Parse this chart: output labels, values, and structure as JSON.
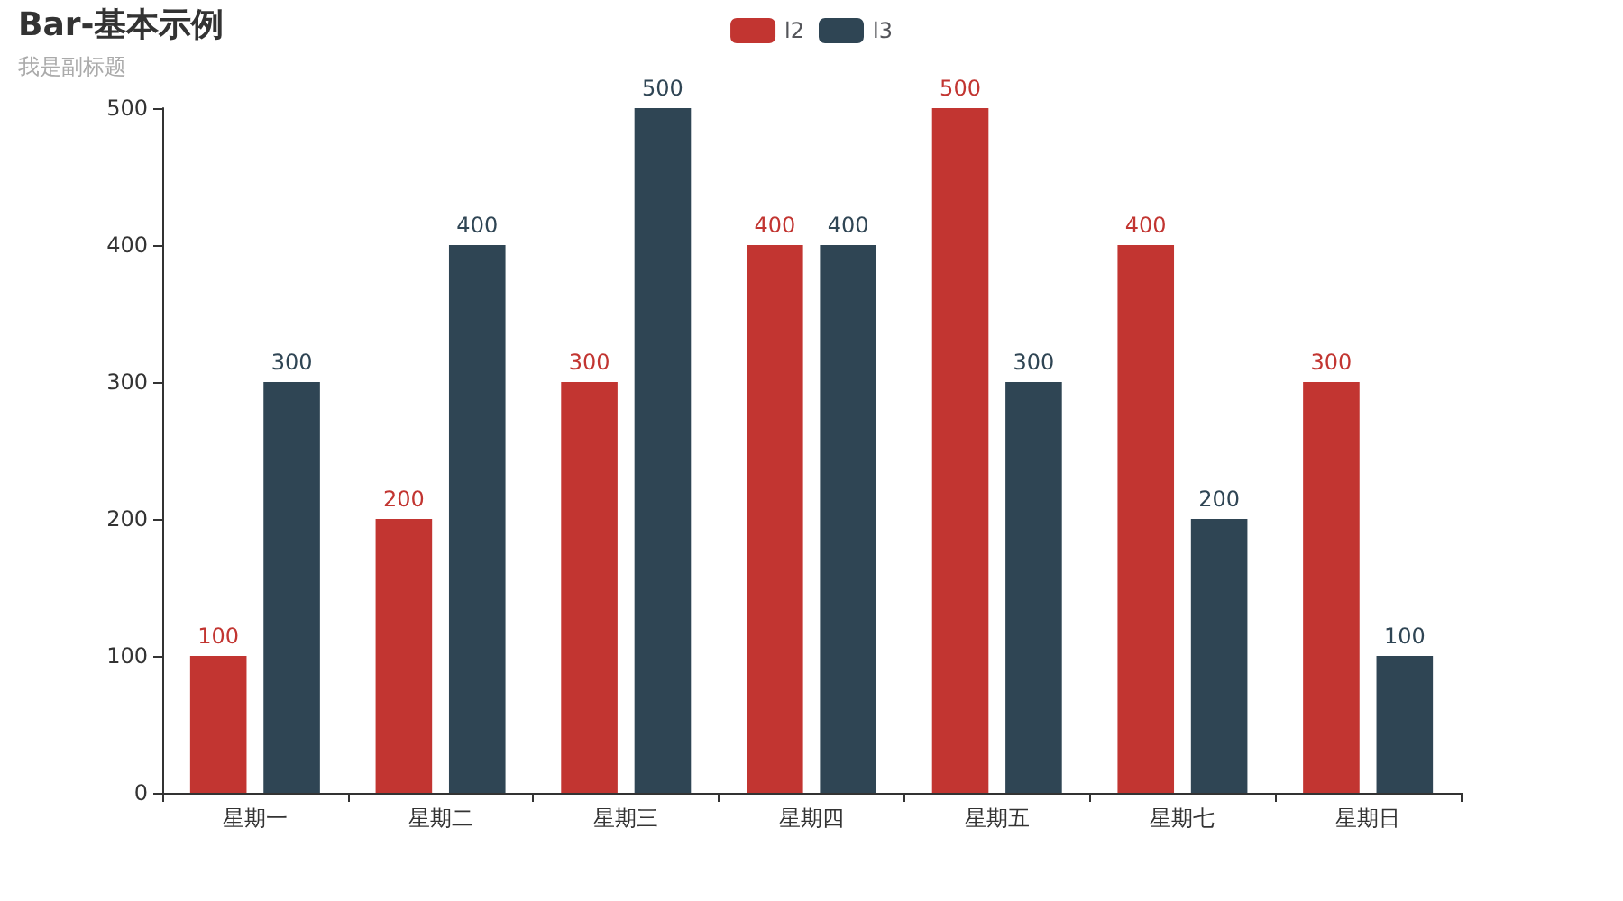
{
  "chart_data": {
    "type": "bar",
    "title": "Bar-基本示例",
    "subtitle": "我是副标题",
    "categories": [
      "星期一",
      "星期二",
      "星期三",
      "星期四",
      "星期五",
      "星期七",
      "星期日"
    ],
    "series": [
      {
        "name": "l2",
        "color": "#c23531",
        "values": [
          100,
          200,
          300,
          400,
          500,
          400,
          300
        ]
      },
      {
        "name": "l3",
        "color": "#2f4554",
        "values": [
          300,
          400,
          500,
          400,
          300,
          200,
          100
        ]
      }
    ],
    "ylim": [
      0,
      500
    ],
    "yticks": [
      0,
      100,
      200,
      300,
      400,
      500
    ],
    "grid": false,
    "legend": "top",
    "data_labels": true
  }
}
